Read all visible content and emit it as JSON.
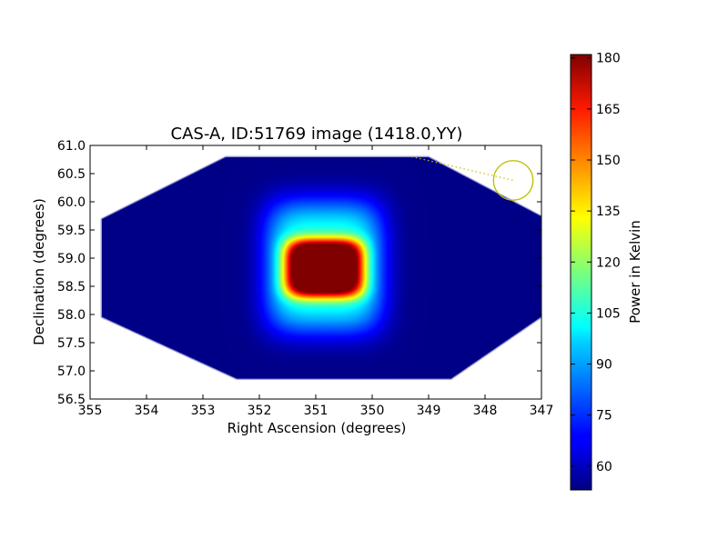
{
  "chart_data": {
    "type": "heatmap",
    "title": "CAS-A, ID:51769 image (1418.0,YY)",
    "xlabel": "Right Ascension (degrees)",
    "ylabel": "Declination (degrees)",
    "xlim": [
      355,
      347
    ],
    "ylim": [
      56.5,
      61.0
    ],
    "x_ticks": [
      "355",
      "354",
      "353",
      "352",
      "351",
      "350",
      "349",
      "348",
      "347"
    ],
    "y_ticks": [
      "56.5",
      "57.0",
      "57.5",
      "58.0",
      "58.5",
      "59.0",
      "59.5",
      "60.0",
      "60.5",
      "61.0"
    ],
    "colormap": "jet",
    "colorbar": {
      "label": "Power in Kelvin",
      "range": [
        53,
        181
      ],
      "ticks": [
        "60",
        "75",
        "90",
        "105",
        "120",
        "135",
        "150",
        "165",
        "180"
      ]
    },
    "data_footprint": [
      [
        354.8,
        59.7
      ],
      [
        352.6,
        60.8
      ],
      [
        349.0,
        60.8
      ],
      [
        347.0,
        59.75
      ],
      [
        347.0,
        57.95
      ],
      [
        348.6,
        56.85
      ],
      [
        352.4,
        56.85
      ],
      [
        354.8,
        57.95
      ]
    ],
    "background_level": 54,
    "sources": [
      {
        "ra": 350.85,
        "dec": 58.82,
        "peak": 181,
        "sigma_ra": 0.55,
        "sigma_dec": 0.4
      },
      {
        "ra": 350.85,
        "dec": 58.85,
        "peak": 55,
        "sigma_ra": 0.85,
        "sigma_dec": 0.95
      }
    ],
    "annotation": {
      "circle": {
        "ra": 347.5,
        "dec": 60.38,
        "radius_deg": 0.35
      },
      "track": [
        [
          349.3,
          60.8
        ],
        [
          347.5,
          60.38
        ]
      ],
      "color": "#bfbf00"
    }
  }
}
